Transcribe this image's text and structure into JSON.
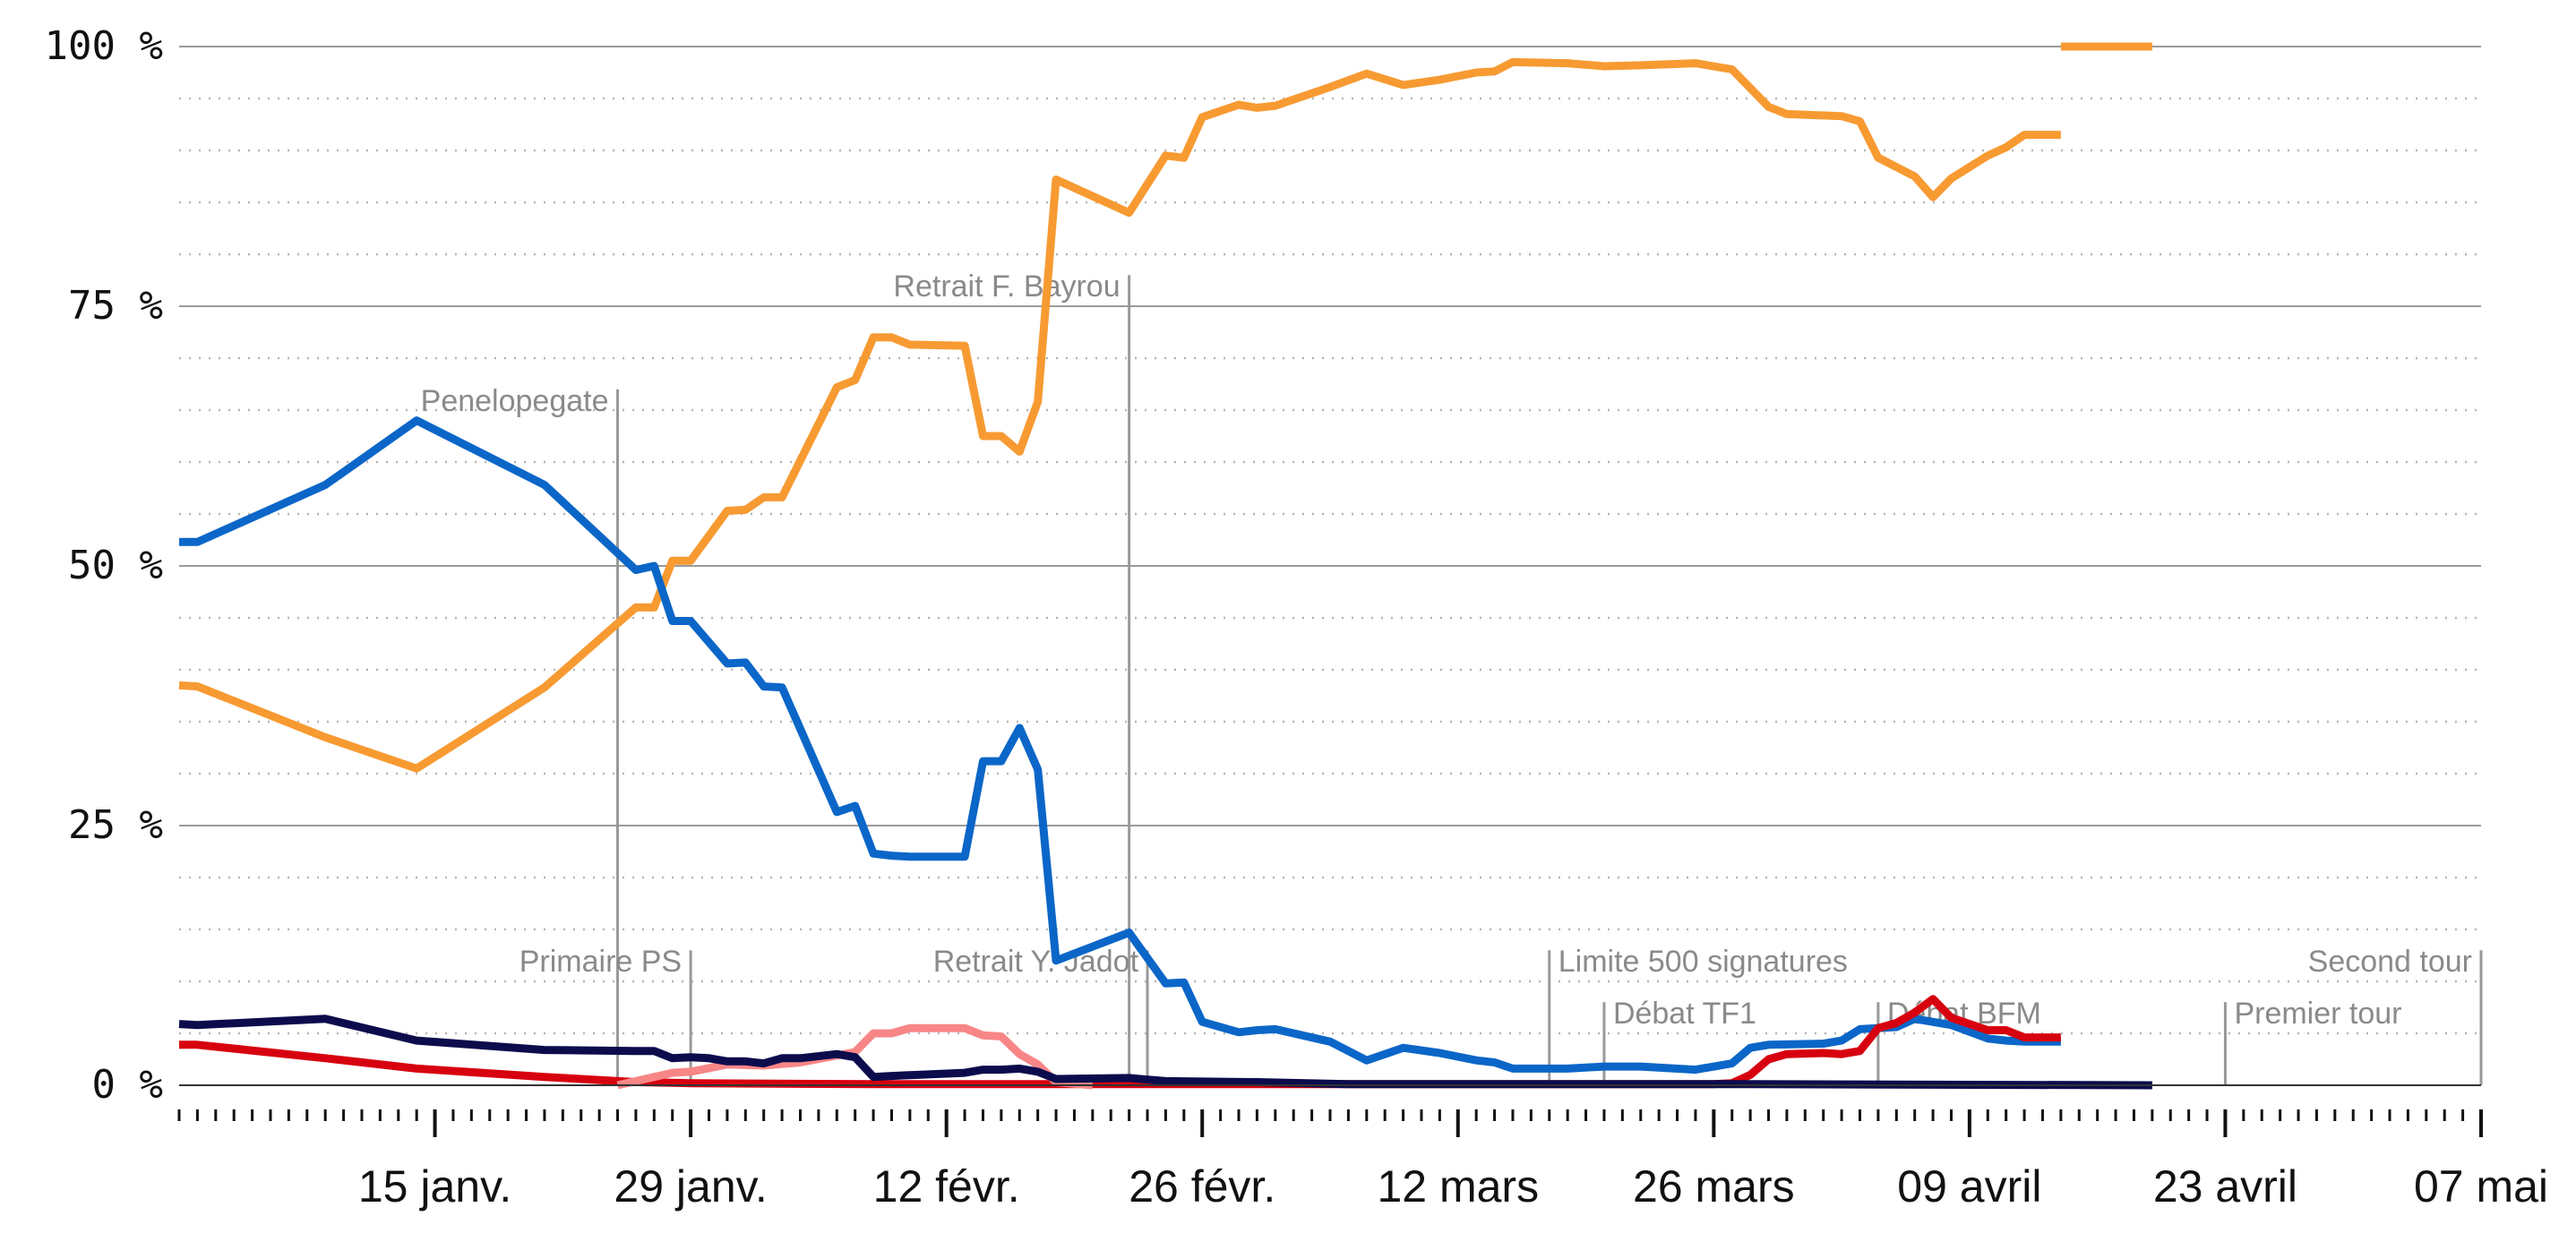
{
  "chart_data": {
    "type": "line",
    "title": "",
    "xlabel": "",
    "ylabel": "",
    "xlim": [
      "2017-01-01",
      "2017-05-07"
    ],
    "ylim": [
      0,
      100
    ],
    "y_ticks": [
      {
        "value": 0,
        "label": "0 %"
      },
      {
        "value": 25,
        "label": "25 %"
      },
      {
        "value": 50,
        "label": "50 %"
      },
      {
        "value": 75,
        "label": "75 %"
      },
      {
        "value": 100,
        "label": "100 %"
      }
    ],
    "x_ticks": [
      {
        "date": "2017-01-15",
        "label": "15 janv."
      },
      {
        "date": "2017-01-29",
        "label": "29 janv."
      },
      {
        "date": "2017-02-12",
        "label": "12 févr."
      },
      {
        "date": "2017-02-26",
        "label": "26 févr."
      },
      {
        "date": "2017-03-12",
        "label": "12 mars"
      },
      {
        "date": "2017-03-26",
        "label": "26 mars"
      },
      {
        "date": "2017-04-09",
        "label": "09 avril"
      },
      {
        "date": "2017-04-23",
        "label": "23 avril"
      },
      {
        "date": "2017-05-07",
        "label": "07 mai"
      }
    ],
    "grid": {
      "major_every": 25,
      "minor_every": 5
    },
    "legend": "none",
    "annotations": [
      {
        "label": "Penelopegate",
        "date": "2017-01-25",
        "level": 67,
        "align": "end"
      },
      {
        "label": "Retrait F. Bayrou",
        "date": "2017-02-22",
        "level": 78,
        "align": "end"
      },
      {
        "label": "Primaire PS",
        "date": "2017-01-29",
        "level": 13,
        "align": "end"
      },
      {
        "label": "Retrait Y. Jadot",
        "date": "2017-02-23",
        "level": 13,
        "align": "end"
      },
      {
        "label": "Limite 500 signatures",
        "date": "2017-03-17",
        "level": 13,
        "align": "start"
      },
      {
        "label": "Débat TF1",
        "date": "2017-03-20",
        "level": 8,
        "align": "start"
      },
      {
        "label": "Débat BFM",
        "date": "2017-04-04",
        "level": 8,
        "align": "start"
      },
      {
        "label": "Premier tour",
        "date": "2017-04-23",
        "level": 8,
        "align": "start"
      },
      {
        "label": "Second tour",
        "date": "2017-05-07",
        "level": 13,
        "align": "end"
      }
    ],
    "series": [
      {
        "color": "#f79a32",
        "points": [
          [
            "2017-01-01",
            38.5
          ],
          [
            "2017-01-02",
            38.4
          ],
          [
            "2017-01-09",
            33.5
          ],
          [
            "2017-01-14",
            30.5
          ],
          [
            "2017-01-21",
            38.3
          ],
          [
            "2017-01-26",
            46.0
          ],
          [
            "2017-01-27",
            46.0
          ],
          [
            "2017-01-28",
            50.5
          ],
          [
            "2017-01-29",
            50.5
          ],
          [
            "2017-01-31",
            55.3
          ],
          [
            "2017-02-01",
            55.4
          ],
          [
            "2017-02-02",
            56.6
          ],
          [
            "2017-02-03",
            56.6
          ],
          [
            "2017-02-06",
            67.2
          ],
          [
            "2017-02-07",
            67.9
          ],
          [
            "2017-02-08",
            72.0
          ],
          [
            "2017-02-09",
            72.0
          ],
          [
            "2017-02-10",
            71.3
          ],
          [
            "2017-02-13",
            71.2
          ],
          [
            "2017-02-14",
            62.5
          ],
          [
            "2017-02-15",
            62.5
          ],
          [
            "2017-02-16",
            61.0
          ],
          [
            "2017-02-17",
            65.8
          ],
          [
            "2017-02-18",
            87.2
          ],
          [
            "2017-02-22",
            84.0
          ],
          [
            "2017-02-24",
            89.5
          ],
          [
            "2017-02-25",
            89.3
          ],
          [
            "2017-02-26",
            93.2
          ],
          [
            "2017-02-28",
            94.4
          ],
          [
            "2017-03-01",
            94.1
          ],
          [
            "2017-03-02",
            94.3
          ],
          [
            "2017-03-05",
            96.1
          ],
          [
            "2017-03-07",
            97.4
          ],
          [
            "2017-03-09",
            96.3
          ],
          [
            "2017-03-11",
            96.8
          ],
          [
            "2017-03-13",
            97.5
          ],
          [
            "2017-03-14",
            97.6
          ],
          [
            "2017-03-15",
            98.5
          ],
          [
            "2017-03-18",
            98.4
          ],
          [
            "2017-03-20",
            98.1
          ],
          [
            "2017-03-22",
            98.2
          ],
          [
            "2017-03-25",
            98.4
          ],
          [
            "2017-03-27",
            97.8
          ],
          [
            "2017-03-29",
            94.2
          ],
          [
            "2017-03-30",
            93.5
          ],
          [
            "2017-04-02",
            93.3
          ],
          [
            "2017-04-03",
            92.8
          ],
          [
            "2017-04-04",
            89.3
          ],
          [
            "2017-04-06",
            87.5
          ],
          [
            "2017-04-07",
            85.5
          ],
          [
            "2017-04-08",
            87.3
          ],
          [
            "2017-04-10",
            89.5
          ],
          [
            "2017-04-11",
            90.3
          ],
          [
            "2017-04-12",
            91.5
          ],
          [
            "2017-04-14",
            91.5
          ],
          null,
          [
            "2017-04-14",
            100
          ],
          [
            "2017-04-19",
            100
          ]
        ]
      },
      {
        "color": "#0b66c8",
        "points": [
          [
            "2017-01-01",
            52.3
          ],
          [
            "2017-01-02",
            52.3
          ],
          [
            "2017-01-09",
            57.8
          ],
          [
            "2017-01-14",
            64.0
          ],
          [
            "2017-01-21",
            57.8
          ],
          [
            "2017-01-26",
            49.6
          ],
          [
            "2017-01-27",
            50.0
          ],
          [
            "2017-01-28",
            44.7
          ],
          [
            "2017-01-29",
            44.7
          ],
          [
            "2017-01-31",
            40.6
          ],
          [
            "2017-02-01",
            40.7
          ],
          [
            "2017-02-02",
            38.4
          ],
          [
            "2017-02-03",
            38.3
          ],
          [
            "2017-02-06",
            26.3
          ],
          [
            "2017-02-07",
            26.9
          ],
          [
            "2017-02-08",
            22.3
          ],
          [
            "2017-02-09",
            22.1
          ],
          [
            "2017-02-10",
            22.0
          ],
          [
            "2017-02-13",
            22.0
          ],
          [
            "2017-02-14",
            31.2
          ],
          [
            "2017-02-15",
            31.2
          ],
          [
            "2017-02-16",
            34.4
          ],
          [
            "2017-02-17",
            30.4
          ],
          [
            "2017-02-18",
            12.0
          ],
          [
            "2017-02-22",
            14.7
          ],
          [
            "2017-02-24",
            9.8
          ],
          [
            "2017-02-25",
            9.9
          ],
          [
            "2017-02-26",
            6.1
          ],
          [
            "2017-02-28",
            5.1
          ],
          [
            "2017-03-01",
            5.3
          ],
          [
            "2017-03-02",
            5.4
          ],
          [
            "2017-03-05",
            4.2
          ],
          [
            "2017-03-07",
            2.4
          ],
          [
            "2017-03-09",
            3.6
          ],
          [
            "2017-03-11",
            3.1
          ],
          [
            "2017-03-13",
            2.4
          ],
          [
            "2017-03-14",
            2.2
          ],
          [
            "2017-03-15",
            1.6
          ],
          [
            "2017-03-18",
            1.6
          ],
          [
            "2017-03-20",
            1.8
          ],
          [
            "2017-03-22",
            1.8
          ],
          [
            "2017-03-25",
            1.5
          ],
          [
            "2017-03-27",
            2.1
          ],
          [
            "2017-03-28",
            3.6
          ],
          [
            "2017-03-29",
            3.9
          ],
          [
            "2017-04-01",
            4.0
          ],
          [
            "2017-04-02",
            4.3
          ],
          [
            "2017-04-03",
            5.4
          ],
          [
            "2017-04-05",
            5.6
          ],
          [
            "2017-04-06",
            6.4
          ],
          [
            "2017-04-08",
            5.8
          ],
          [
            "2017-04-10",
            4.5
          ],
          [
            "2017-04-11",
            4.3
          ],
          [
            "2017-04-12",
            4.2
          ],
          [
            "2017-04-14",
            4.2
          ]
        ]
      },
      {
        "color": "#d7000f",
        "points": [
          [
            "2017-01-01",
            3.9
          ],
          [
            "2017-01-02",
            3.9
          ],
          [
            "2017-01-09",
            2.6
          ],
          [
            "2017-01-14",
            1.6
          ],
          [
            "2017-01-21",
            0.8
          ],
          [
            "2017-01-26",
            0.3
          ],
          [
            "2017-01-29",
            0.2
          ],
          [
            "2017-02-08",
            0.1
          ],
          [
            "2017-03-26",
            0.1
          ],
          [
            "2017-03-27",
            0.2
          ],
          [
            "2017-03-28",
            1.0
          ],
          [
            "2017-03-29",
            2.5
          ],
          [
            "2017-03-30",
            3.0
          ],
          [
            "2017-04-01",
            3.1
          ],
          [
            "2017-04-02",
            3.0
          ],
          [
            "2017-04-03",
            3.3
          ],
          [
            "2017-04-04",
            5.5
          ],
          [
            "2017-04-05",
            6.0
          ],
          [
            "2017-04-06",
            7.0
          ],
          [
            "2017-04-07",
            8.3
          ],
          [
            "2017-04-08",
            6.5
          ],
          [
            "2017-04-10",
            5.3
          ],
          [
            "2017-04-11",
            5.3
          ],
          [
            "2017-04-12",
            4.6
          ],
          [
            "2017-04-14",
            4.6
          ]
        ]
      },
      {
        "color": "#f88687",
        "points": [
          [
            "2017-01-25",
            0.0
          ],
          [
            "2017-01-28",
            1.2
          ],
          [
            "2017-01-29",
            1.3
          ],
          [
            "2017-01-31",
            2.0
          ],
          [
            "2017-02-02",
            1.9
          ],
          [
            "2017-02-04",
            2.2
          ],
          [
            "2017-02-07",
            3.2
          ],
          [
            "2017-02-08",
            5.0
          ],
          [
            "2017-02-09",
            5.0
          ],
          [
            "2017-02-10",
            5.5
          ],
          [
            "2017-02-13",
            5.5
          ],
          [
            "2017-02-14",
            4.8
          ],
          [
            "2017-02-15",
            4.7
          ],
          [
            "2017-02-16",
            3.0
          ],
          [
            "2017-02-17",
            2.0
          ],
          [
            "2017-02-18",
            0.3
          ],
          [
            "2017-02-20",
            0.0
          ]
        ]
      },
      {
        "color": "#0c0c4d",
        "points": [
          [
            "2017-01-01",
            5.9
          ],
          [
            "2017-01-02",
            5.8
          ],
          [
            "2017-01-09",
            6.4
          ],
          [
            "2017-01-14",
            4.3
          ],
          [
            "2017-01-21",
            3.4
          ],
          [
            "2017-01-26",
            3.3
          ],
          [
            "2017-01-27",
            3.3
          ],
          [
            "2017-01-28",
            2.6
          ],
          [
            "2017-01-29",
            2.7
          ],
          [
            "2017-01-30",
            2.6
          ],
          [
            "2017-01-31",
            2.3
          ],
          [
            "2017-02-01",
            2.3
          ],
          [
            "2017-02-02",
            2.1
          ],
          [
            "2017-02-03",
            2.6
          ],
          [
            "2017-02-04",
            2.6
          ],
          [
            "2017-02-06",
            3.0
          ],
          [
            "2017-02-07",
            2.7
          ],
          [
            "2017-02-08",
            0.8
          ],
          [
            "2017-02-09",
            0.9
          ],
          [
            "2017-02-13",
            1.2
          ],
          [
            "2017-02-14",
            1.5
          ],
          [
            "2017-02-15",
            1.5
          ],
          [
            "2017-02-16",
            1.6
          ],
          [
            "2017-02-17",
            1.3
          ],
          [
            "2017-02-18",
            0.6
          ],
          [
            "2017-02-22",
            0.7
          ],
          [
            "2017-02-24",
            0.4
          ],
          [
            "2017-03-01",
            0.3
          ],
          [
            "2017-03-06",
            0.1
          ],
          [
            "2017-03-28",
            0.1
          ],
          [
            "2017-04-19",
            0.0
          ]
        ]
      }
    ]
  }
}
